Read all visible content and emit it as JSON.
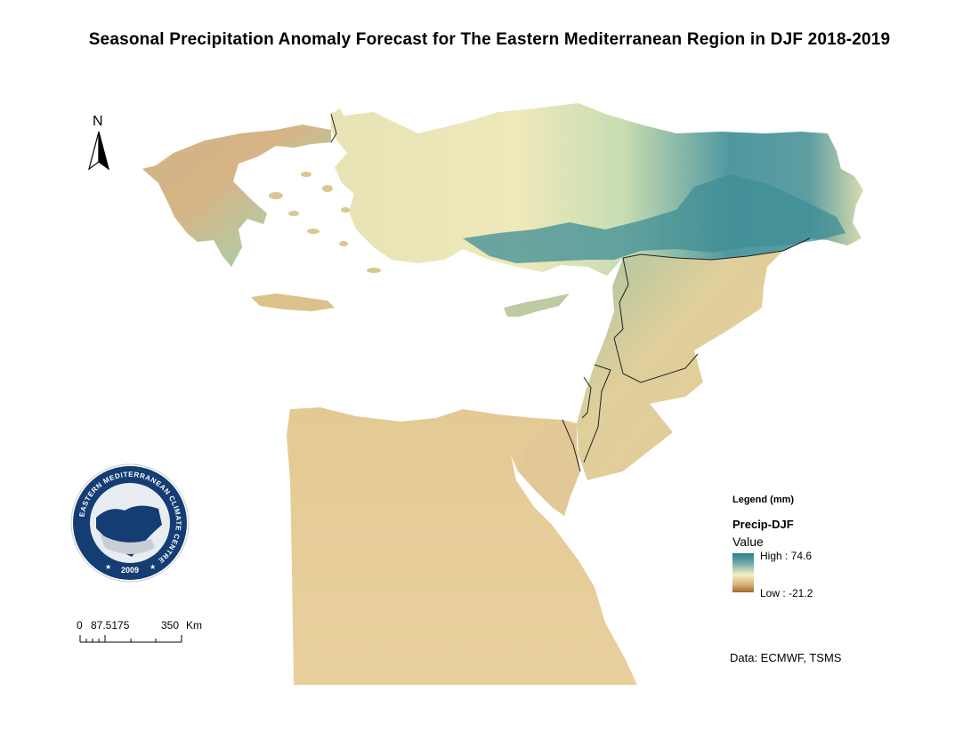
{
  "title": "Seasonal Precipitation Anomaly Forecast for The Eastern Mediterranean Region in DJF 2018-2019",
  "north_arrow": {
    "label": "N"
  },
  "logo": {
    "ring_text": "EASTERN MEDITERRANEAN CLIMATE CENTRE",
    "year": "2009"
  },
  "scale_bar": {
    "tick_0": "0",
    "tick_1": "87.5175",
    "tick_2": "350",
    "unit": "Km"
  },
  "legend": {
    "title": "Legend (mm)",
    "layer": "Precip-DJF",
    "field": "Value",
    "high_label": "High : 74.6",
    "low_label": "Low : -21.2",
    "high_color": "#2d7d8f",
    "mid_color": "#f4f0c4",
    "low_color": "#a86a2c"
  },
  "data_source": "Data:  ECMWF, TSMS",
  "colors": {
    "desert": "#e6cc96",
    "coast_teal": "#3f8e96",
    "pale": "#efe8b6",
    "border": "#222222"
  }
}
